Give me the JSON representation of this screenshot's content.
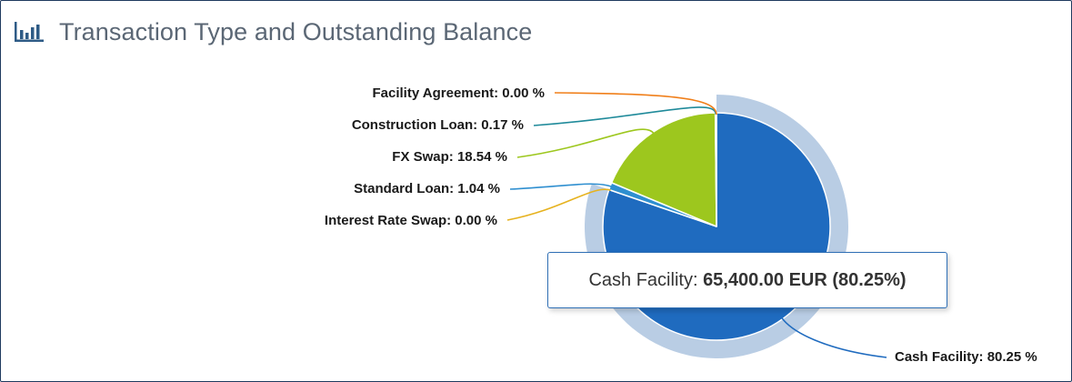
{
  "header": {
    "title": "Transaction Type and Outstanding Balance",
    "icon": "bar-chart-icon"
  },
  "chart_data": {
    "type": "pie",
    "title": "Transaction Type and Outstanding Balance",
    "series": [
      {
        "name": "",
        "slices": [
          {
            "label": "Cash Facility",
            "percent": 80.25,
            "color": "#1f6bbf",
            "label_text": "Cash Facility: 80.25 %"
          },
          {
            "label": "Interest Rate Swap",
            "percent": 0.0,
            "color": "#e6b21f",
            "label_text": "Interest Rate Swap: 0.00 %"
          },
          {
            "label": "Standard Loan",
            "percent": 1.04,
            "color": "#2f8fd0",
            "label_text": "Standard Loan: 1.04 %"
          },
          {
            "label": "FX Swap",
            "percent": 18.54,
            "color": "#9dc71e",
            "label_text": "FX Swap: 18.54 %"
          },
          {
            "label": "Construction Loan",
            "percent": 0.17,
            "color": "#1f8a9a",
            "label_text": "Construction Loan: 0.17 %"
          },
          {
            "label": "Facility Agreement",
            "percent": 0.0,
            "color": "#f07f1a",
            "label_text": "Facility Agreement: 0.00 %"
          }
        ]
      }
    ],
    "hovered_slice": "Cash Facility",
    "halo_color": "#b9cde4"
  },
  "tooltip": {
    "label": "Cash Facility: ",
    "value": "65,400.00 EUR (80.25%)"
  }
}
